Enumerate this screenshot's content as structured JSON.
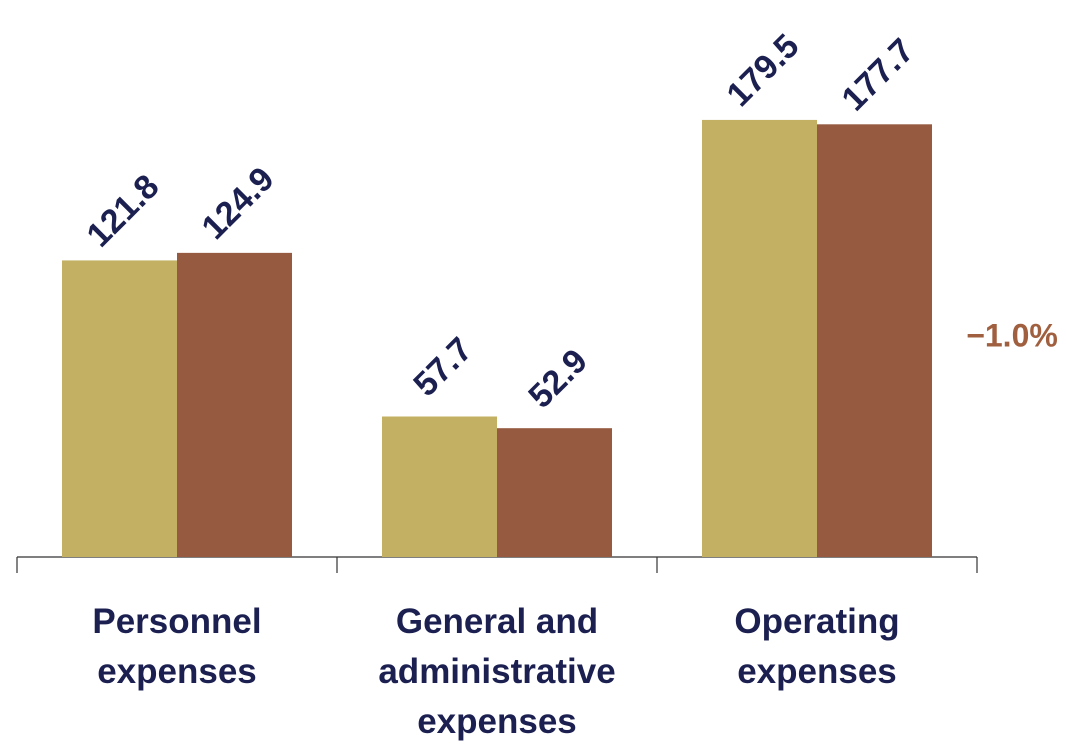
{
  "chart_data": {
    "type": "bar",
    "categories": [
      "Personnel expenses",
      "General and administrative expenses",
      "Operating expenses"
    ],
    "series": [
      {
        "color": "#c4b062",
        "values": [
          121.8,
          57.7,
          179.5
        ]
      },
      {
        "color": "#955a40",
        "values": [
          124.9,
          52.9,
          177.7
        ]
      }
    ],
    "ylim": [
      0,
      200
    ],
    "annotations": [
      {
        "text": "−1.0%",
        "color": "#a0603f"
      }
    ]
  }
}
